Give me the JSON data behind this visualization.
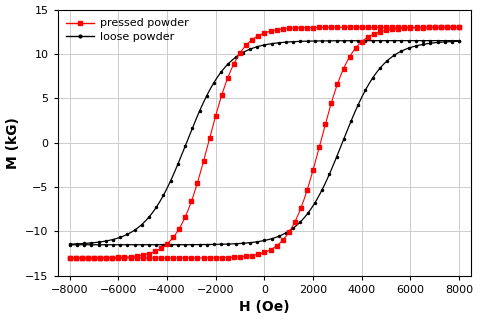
{
  "xlabel": "H (Oe)",
  "ylabel": "M (kG)",
  "xlim": [
    -8500,
    8500
  ],
  "ylim": [
    -15,
    15
  ],
  "xticks": [
    -8000,
    -6000,
    -4000,
    -2000,
    0,
    2000,
    4000,
    6000,
    8000
  ],
  "yticks": [
    -15,
    -10,
    -5,
    0,
    5,
    10,
    15
  ],
  "background_color": "#ffffff",
  "grid_color": "#cccccc",
  "pressed_color": "#ff0000",
  "loose_color": "#000000",
  "legend_labels": [
    "pressed powder",
    "loose powder"
  ],
  "Ms_pressed": 13.0,
  "Ms_loose": 11.5,
  "Hc_pressed": 2300,
  "Hc_loose": 3200,
  "alpha_pressed": 0.0008,
  "alpha_loose": 0.0006,
  "n_pressed": 65,
  "n_loose": 55
}
